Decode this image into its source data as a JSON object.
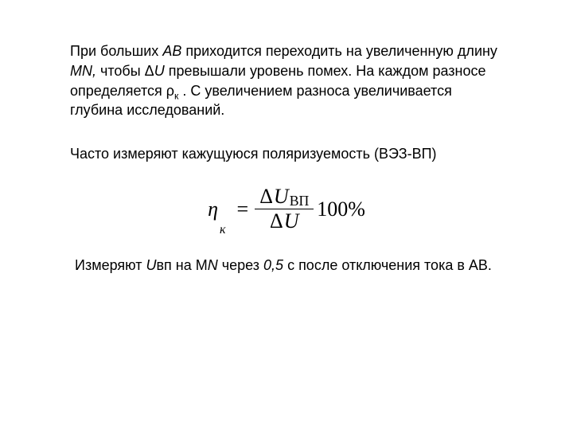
{
  "colors": {
    "text": "#000000",
    "background": "#ffffff"
  },
  "typography": {
    "body_font": "Arial",
    "body_size_pt": 13,
    "formula_font": "Times New Roman",
    "formula_size_pt": 20
  },
  "paragraph1": {
    "s1": "При больших ",
    "AB": "АВ",
    "s2": " приходится переходить на увеличенную длину ",
    "MN": "MN,",
    "s3": " чтобы Δ",
    "U": "U",
    "s4": " превышали уровень помех. На каждом разносе определяется ρ",
    "k": "к",
    "s5": " . С увеличением разноса увеличивается глубина исследований."
  },
  "paragraph2": "Часто измеряют кажущуюся поляризуемость (ВЭЗ-ВП)",
  "formula": {
    "eta": "η",
    "eta_sub": "к",
    "eq": "=",
    "delta": "Δ",
    "U": "U",
    "vp": "ВП",
    "hundred": "100%"
  },
  "paragraph3": {
    "s1": "Измеряют ",
    "Uvp_U": "U",
    "Uvp_vp": "вп",
    "s2": " на М",
    "N": "N",
    "s3": " через ",
    "t": "0,5",
    "s4": " с после отключения тока в АВ."
  }
}
